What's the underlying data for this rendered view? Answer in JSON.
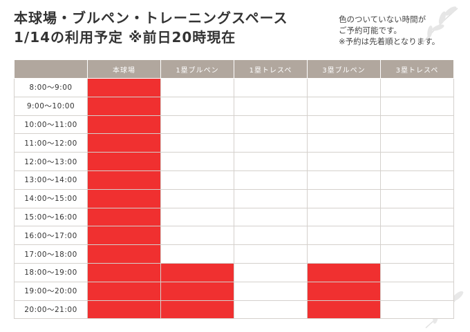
{
  "header": {
    "title_line1": "本球場・ブルペン・トレーニングスペース",
    "title_line2": "1/14の利用予定 ※前日20時現在"
  },
  "note": {
    "line1": "色のついていない時間が",
    "line2": "ご予約可能です。",
    "line3": "※予約は先着順となります。"
  },
  "schedule": {
    "columns": [
      "本球場",
      "1塁ブルペン",
      "1塁トレスペ",
      "3塁ブルペン",
      "3塁トレスペ"
    ],
    "rows": [
      {
        "time": "8:00〜9:00",
        "slots": [
          1,
          0,
          0,
          0,
          0
        ]
      },
      {
        "time": "9:00〜10:00",
        "slots": [
          1,
          0,
          0,
          0,
          0
        ]
      },
      {
        "time": "10:00〜11:00",
        "slots": [
          1,
          0,
          0,
          0,
          0
        ]
      },
      {
        "time": "11:00〜12:00",
        "slots": [
          1,
          0,
          0,
          0,
          0
        ]
      },
      {
        "time": "12:00〜13:00",
        "slots": [
          1,
          0,
          0,
          0,
          0
        ]
      },
      {
        "time": "13:00〜14:00",
        "slots": [
          1,
          0,
          0,
          0,
          0
        ]
      },
      {
        "time": "14:00〜15:00",
        "slots": [
          1,
          0,
          0,
          0,
          0
        ]
      },
      {
        "time": "15:00〜16:00",
        "slots": [
          1,
          0,
          0,
          0,
          0
        ]
      },
      {
        "time": "16:00〜17:00",
        "slots": [
          1,
          0,
          0,
          0,
          0
        ]
      },
      {
        "time": "17:00〜18:00",
        "slots": [
          1,
          0,
          0,
          0,
          0
        ]
      },
      {
        "time": "18:00〜19:00",
        "slots": [
          1,
          1,
          0,
          1,
          0
        ]
      },
      {
        "time": "19:00〜20:00",
        "slots": [
          1,
          1,
          0,
          1,
          0
        ]
      },
      {
        "time": "20:00〜21:00",
        "slots": [
          1,
          1,
          0,
          1,
          0
        ]
      }
    ]
  },
  "colors": {
    "booked": "#f03030",
    "header_bg": "#b1a79e"
  }
}
